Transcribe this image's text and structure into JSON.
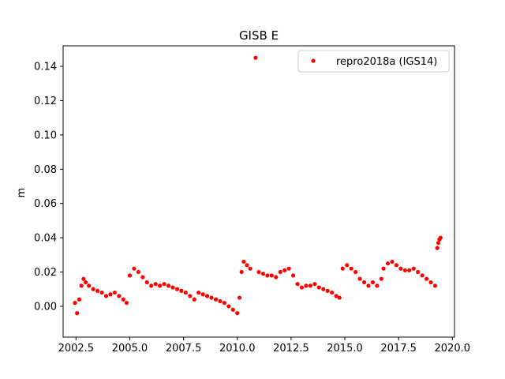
{
  "chart_data": {
    "type": "scatter",
    "title": "GISB E",
    "xlabel": "",
    "ylabel": "m",
    "xlim": [
      2001.9,
      2020.1
    ],
    "ylim": [
      -0.018,
      0.152
    ],
    "xticks": [
      2002.5,
      2005.0,
      2007.5,
      2010.0,
      2012.5,
      2015.0,
      2017.5,
      2020.0
    ],
    "xtick_labels": [
      "2002.5",
      "2005.0",
      "2007.5",
      "2010.0",
      "2012.5",
      "2015.0",
      "2017.5",
      "2020.0"
    ],
    "yticks": [
      0.0,
      0.02,
      0.04,
      0.06,
      0.08,
      0.1,
      0.12,
      0.14
    ],
    "ytick_labels": [
      "0.00",
      "0.02",
      "0.04",
      "0.06",
      "0.08",
      "0.10",
      "0.12",
      "0.14"
    ],
    "grid": false,
    "legend_position": "top-right",
    "series": [
      {
        "name": "repro2018a (IGS14)",
        "color": "#ff0000",
        "marker": "circle",
        "x": [
          2002.45,
          2002.55,
          2002.65,
          2002.75,
          2002.85,
          2002.95,
          2003.1,
          2003.3,
          2003.5,
          2003.7,
          2003.9,
          2004.1,
          2004.3,
          2004.5,
          2004.7,
          2004.85,
          2005.0,
          2005.2,
          2005.4,
          2005.6,
          2005.8,
          2006.0,
          2006.2,
          2006.4,
          2006.6,
          2006.8,
          2007.0,
          2007.2,
          2007.4,
          2007.6,
          2007.8,
          2008.0,
          2008.2,
          2008.4,
          2008.6,
          2008.8,
          2009.0,
          2009.2,
          2009.4,
          2009.6,
          2009.8,
          2010.0,
          2010.1,
          2010.2,
          2010.3,
          2010.45,
          2010.6,
          2010.85,
          2011.0,
          2011.2,
          2011.4,
          2011.6,
          2011.8,
          2012.0,
          2012.2,
          2012.4,
          2012.6,
          2012.8,
          2013.0,
          2013.2,
          2013.4,
          2013.6,
          2013.8,
          2014.0,
          2014.2,
          2014.4,
          2014.6,
          2014.75,
          2014.9,
          2015.1,
          2015.3,
          2015.5,
          2015.7,
          2015.9,
          2016.1,
          2016.3,
          2016.5,
          2016.7,
          2016.8,
          2017.0,
          2017.2,
          2017.4,
          2017.6,
          2017.8,
          2018.0,
          2018.2,
          2018.4,
          2018.6,
          2018.8,
          2019.0,
          2019.2,
          2019.3,
          2019.35,
          2019.4,
          2019.45
        ],
        "y": [
          0.002,
          -0.004,
          0.004,
          0.012,
          0.016,
          0.014,
          0.012,
          0.01,
          0.009,
          0.008,
          0.006,
          0.007,
          0.008,
          0.006,
          0.004,
          0.002,
          0.018,
          0.022,
          0.02,
          0.017,
          0.014,
          0.012,
          0.013,
          0.012,
          0.013,
          0.012,
          0.011,
          0.01,
          0.009,
          0.008,
          0.006,
          0.004,
          0.008,
          0.007,
          0.006,
          0.005,
          0.004,
          0.003,
          0.002,
          0.0,
          -0.002,
          -0.004,
          0.005,
          0.02,
          0.026,
          0.024,
          0.022,
          0.145,
          0.02,
          0.019,
          0.018,
          0.018,
          0.017,
          0.02,
          0.021,
          0.022,
          0.018,
          0.013,
          0.011,
          0.012,
          0.012,
          0.013,
          0.011,
          0.01,
          0.009,
          0.008,
          0.006,
          0.005,
          0.022,
          0.024,
          0.022,
          0.02,
          0.016,
          0.014,
          0.012,
          0.014,
          0.012,
          0.016,
          0.022,
          0.025,
          0.026,
          0.024,
          0.022,
          0.021,
          0.021,
          0.022,
          0.02,
          0.018,
          0.016,
          0.014,
          0.012,
          0.034,
          0.037,
          0.039,
          0.04
        ]
      }
    ]
  }
}
